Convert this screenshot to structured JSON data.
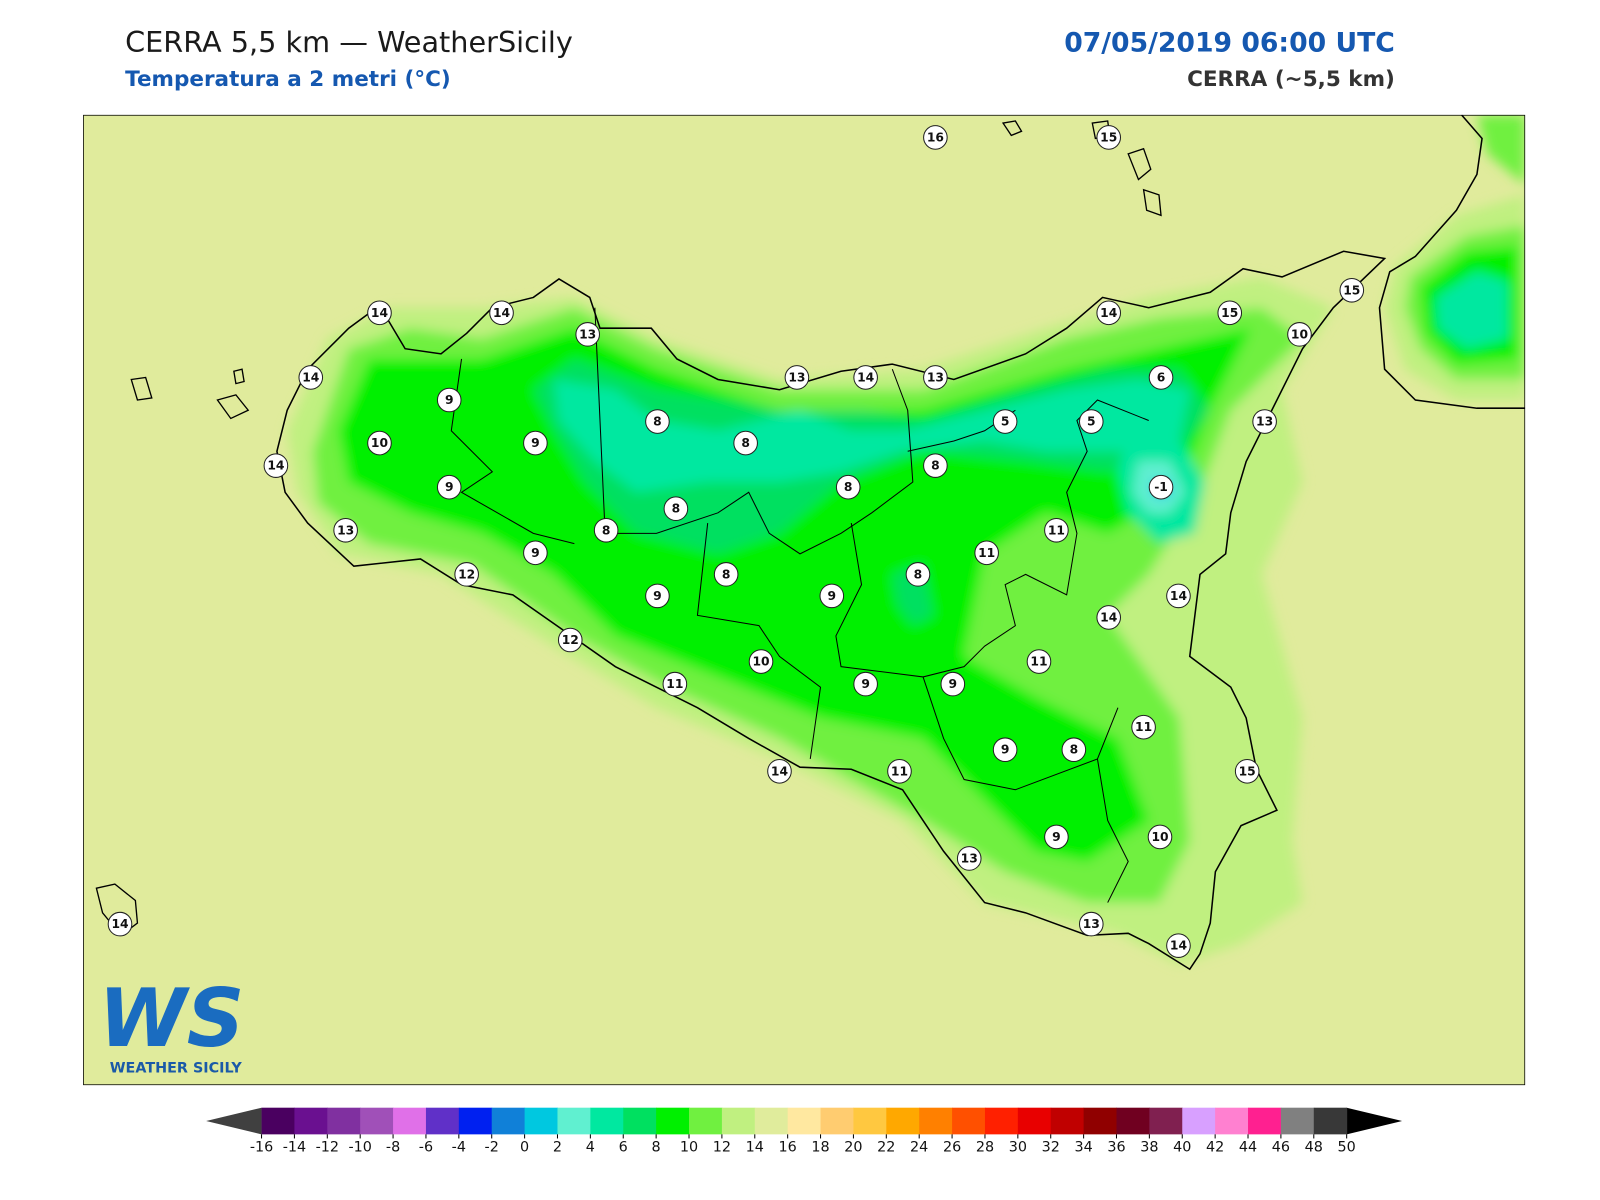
{
  "header": {
    "title": "CERRA 5,5 km — WeatherSicily",
    "subtitle": "Temperatura a 2 metri (°C)",
    "datetime": "07/05/2019 06:00 UTC",
    "model": "CERRA (~5,5 km)"
  },
  "stations": [
    16,
    15,
    14,
    14,
    13,
    14,
    9,
    10,
    9,
    14,
    9,
    13,
    12,
    9,
    8,
    8,
    8,
    8,
    8,
    13,
    14,
    13,
    14,
    15,
    15,
    10,
    6,
    5,
    5,
    13,
    8,
    -1,
    11,
    11,
    14,
    14,
    8,
    9,
    9,
    8,
    12,
    10,
    11,
    11,
    9,
    9,
    11,
    9,
    8,
    14,
    11,
    15,
    13,
    9,
    10,
    13,
    14,
    14
  ],
  "colorbar": {
    "ticks": [
      -16,
      -14,
      -12,
      -10,
      -8,
      -6,
      -4,
      -2,
      0,
      2,
      4,
      6,
      8,
      10,
      12,
      14,
      16,
      18,
      20,
      22,
      24,
      26,
      28,
      30,
      32,
      34,
      36,
      38,
      40,
      42,
      44,
      46,
      48,
      50
    ],
    "colors": [
      "#4a0060",
      "#6a1090",
      "#8030a0",
      "#a050b8",
      "#e070e8",
      "#6030c8",
      "#0020f0",
      "#1080d8",
      "#00c8e0",
      "#60f0d0",
      "#00e8a0",
      "#00e060",
      "#00f000",
      "#70f040",
      "#c0f080",
      "#e0ec9c",
      "#ffe8a0",
      "#ffcc70",
      "#ffc840",
      "#ffa800",
      "#ff8000",
      "#ff5000",
      "#ff2000",
      "#e80000",
      "#c00000",
      "#900000",
      "#700020",
      "#802050",
      "#d8a0ff",
      "#ff80d0",
      "#ff2090",
      "#808080",
      "#383838"
    ],
    "under_color": "#404040",
    "over_color": "#000000"
  },
  "logo": {
    "mark": "WS",
    "text": "WEATHER SICILY"
  }
}
